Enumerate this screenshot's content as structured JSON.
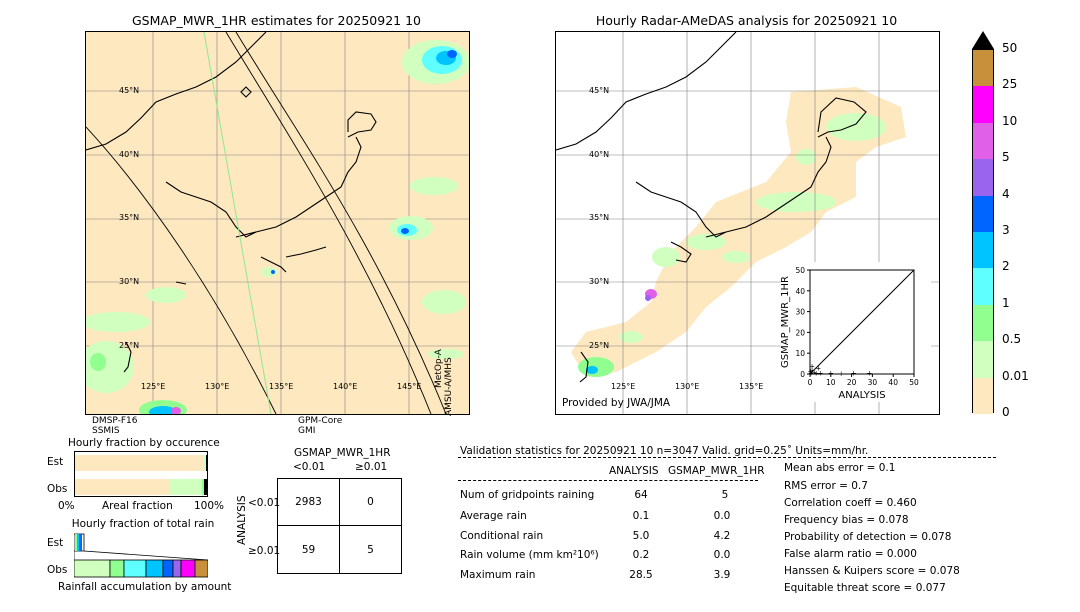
{
  "left_map": {
    "title": "GSMAP_MWR_1HR estimates for 20250921 10",
    "lat_labels": [
      "45°N",
      "40°N",
      "35°N",
      "30°N",
      "25°N"
    ],
    "lon_labels": [
      "125°E",
      "130°E",
      "135°E",
      "140°E",
      "145°E"
    ],
    "sensor_bl_1": "DMSP-F16",
    "sensor_bl_2": "SSMIS",
    "sensor_bc_1": "GPM-Core",
    "sensor_bc_2": "GMI",
    "sensor_right_1": "MetOp-A",
    "sensor_right_2": "AMSU-A/MHS"
  },
  "right_map": {
    "title": "Hourly Radar-AMeDAS analysis for 20250921 10",
    "lat_labels": [
      "45°N",
      "40°N",
      "35°N",
      "30°N",
      "25°N"
    ],
    "lon_labels": [
      "125°E",
      "130°E",
      "135°E"
    ],
    "credit": "Provided by JWA/JMA"
  },
  "colorbar": {
    "labels": [
      "50",
      "25",
      "10",
      "5",
      "4",
      "3",
      "2",
      "1",
      "0.5",
      "0.01",
      "0"
    ],
    "colors": [
      "#c8903a",
      "#ff00ff",
      "#e060e8",
      "#9a64ef",
      "#0064ff",
      "#00c4ff",
      "#60ffff",
      "#90ff90",
      "#d0ffc0",
      "#fde8bf"
    ]
  },
  "chart_data": [
    {
      "type": "scatter",
      "title": "",
      "xlabel": "ANALYSIS",
      "ylabel": "GSMAP_MWR_1HR",
      "xlim": [
        0,
        50
      ],
      "ylim": [
        0,
        50
      ],
      "x_ticks": [
        "0",
        "10",
        "20",
        "30",
        "40",
        "50"
      ],
      "y_ticks": [
        "0",
        "10",
        "20",
        "30",
        "40",
        "50"
      ],
      "points": [
        [
          0.5,
          0.5
        ],
        [
          1,
          2
        ],
        [
          2,
          1
        ],
        [
          3,
          0.5
        ],
        [
          5,
          0.5
        ],
        [
          1,
          3.9
        ],
        [
          10,
          0.5
        ],
        [
          15,
          0.3
        ],
        [
          21,
          0.5
        ],
        [
          28.5,
          0.5
        ],
        [
          0.3,
          1.5
        ],
        [
          4,
          3
        ]
      ]
    },
    {
      "type": "bar",
      "title": "Hourly fraction by occurence",
      "categories": [
        "Est",
        "Obs"
      ],
      "xlabel": "Areal fraction",
      "x_min_label": "0%",
      "x_max_label": "100%",
      "series": [
        {
          "values": [
            0.98,
            0.79
          ]
        },
        {
          "values": [
            0.01,
            0.17
          ]
        },
        {
          "values": [
            0.01,
            0.02
          ]
        }
      ]
    },
    {
      "type": "bar",
      "title": "Hourly fraction of total rain",
      "categories": [
        "Est",
        "Obs"
      ],
      "xlabel": "Rainfall accumulation by amount"
    },
    {
      "type": "table",
      "title": "GSMAP_MWR_1HR",
      "col_headers": [
        "<0.01",
        "≥0.01"
      ],
      "row_label": "ANALYSIS",
      "row_headers": [
        "<0.01",
        "≥0.01"
      ],
      "cells": [
        [
          "2983",
          "0"
        ],
        [
          "59",
          "5"
        ]
      ]
    }
  ],
  "validation": {
    "header": "Validation statistics for 20250921 10  n=3047 Valid. grid=0.25˚ Units=mm/hr.",
    "col_analysis": "ANALYSIS",
    "col_gsmap": "GSMAP_MWR_1HR",
    "rows": [
      {
        "label": "Num of gridpoints raining",
        "a": "64",
        "g": "5"
      },
      {
        "label": "Average rain",
        "a": "0.1",
        "g": "0.0"
      },
      {
        "label": "Conditional rain",
        "a": "5.0",
        "g": "4.2"
      },
      {
        "label": "Rain volume (mm km²10⁶)",
        "a": "0.2",
        "g": "0.0"
      },
      {
        "label": "Maximum rain",
        "a": "28.5",
        "g": "3.9"
      }
    ],
    "scores": [
      "Mean abs error =    0.1",
      "RMS error =    0.7",
      "Correlation coeff =  0.460",
      "Frequency bias =  0.078",
      "Probability of detection =  0.078",
      "False alarm ratio =  0.000",
      "Hanssen & Kuipers score =  0.078",
      "Equitable threat score =  0.077"
    ]
  }
}
